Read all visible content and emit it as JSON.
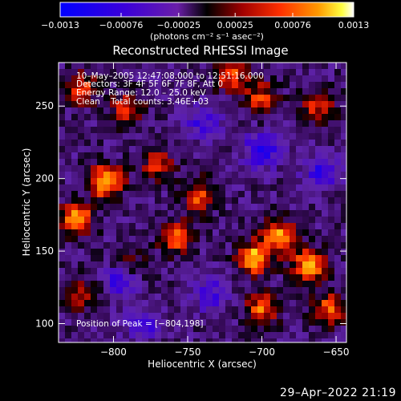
{
  "chart_data": {
    "type": "heatmap",
    "title": "Reconstructed RHESSI Image",
    "xlabel": "Heliocentric X (arcsec)",
    "ylabel": "Heliocentric Y (arcsec)",
    "xlim": [
      -837,
      -643
    ],
    "ylim": [
      87,
      280
    ],
    "xticks": [
      -800,
      -750,
      -700,
      -650
    ],
    "xtick_labels": [
      "−800",
      "−750",
      "−700",
      "−650"
    ],
    "yticks": [
      100,
      150,
      200,
      250
    ],
    "ytick_labels": [
      "100",
      "150",
      "200",
      "250"
    ],
    "colorbar": {
      "label_html": "(photons cm⁻² s⁻¹ asec⁻²)",
      "range": [
        -0.0013,
        0.0013
      ],
      "tick_values": [
        -0.0013,
        -0.00076,
        -0.00025,
        0.00025,
        0.00076,
        0.0013
      ],
      "tick_labels": [
        "−0.0013",
        "−0.00076",
        "−0.00025",
        "0.00025",
        "0.00076",
        "0.0013"
      ],
      "colormap": "blue-purple-red-orange-yellow-white"
    },
    "annotations": [
      "10–May–2005 12:47:08.000 to 12:51:16.000",
      "Detectors: 3F 4F 5F 6F 7F 8F, Att 0",
      "Energy Range: 12.0 – 25.0 keV",
      "Clean    Total counts: 3.46E+03"
    ],
    "peak_label": "Position of Peak = [−804,198]",
    "peak": {
      "x": -804,
      "y": 198
    },
    "grid": false,
    "hotspots": [
      {
        "x": -805,
        "y": 198,
        "amp": 0.0013
      },
      {
        "x": -825,
        "y": 172,
        "amp": 0.0011
      },
      {
        "x": -822,
        "y": 262,
        "amp": 0.0008
      },
      {
        "x": -790,
        "y": 248,
        "amp": 0.0007
      },
      {
        "x": -770,
        "y": 210,
        "amp": 0.0007
      },
      {
        "x": -758,
        "y": 160,
        "amp": 0.0009
      },
      {
        "x": -742,
        "y": 188,
        "amp": 0.00085
      },
      {
        "x": -705,
        "y": 145,
        "amp": 0.0012
      },
      {
        "x": -688,
        "y": 160,
        "amp": 0.0011
      },
      {
        "x": -668,
        "y": 140,
        "amp": 0.00115
      },
      {
        "x": -700,
        "y": 110,
        "amp": 0.0009
      },
      {
        "x": -655,
        "y": 110,
        "amp": 0.0008
      },
      {
        "x": -720,
        "y": 270,
        "amp": 0.0008
      },
      {
        "x": -700,
        "y": 255,
        "amp": 0.00075
      },
      {
        "x": -662,
        "y": 250,
        "amp": 0.0007
      },
      {
        "x": -820,
        "y": 120,
        "amp": 0.0006
      },
      {
        "x": -790,
        "y": 140,
        "amp": 0.0006
      }
    ],
    "coldspots": [
      {
        "x": -700,
        "y": 220,
        "amp": -0.0009
      },
      {
        "x": -795,
        "y": 130,
        "amp": -0.0009
      },
      {
        "x": -660,
        "y": 205,
        "amp": -0.0007
      },
      {
        "x": -780,
        "y": 100,
        "amp": -0.0006
      },
      {
        "x": -740,
        "y": 240,
        "amp": -0.0006
      },
      {
        "x": -735,
        "y": 120,
        "amp": -0.0006
      }
    ]
  },
  "footer": {
    "timestamp": "29–Apr–2022 21:19"
  }
}
